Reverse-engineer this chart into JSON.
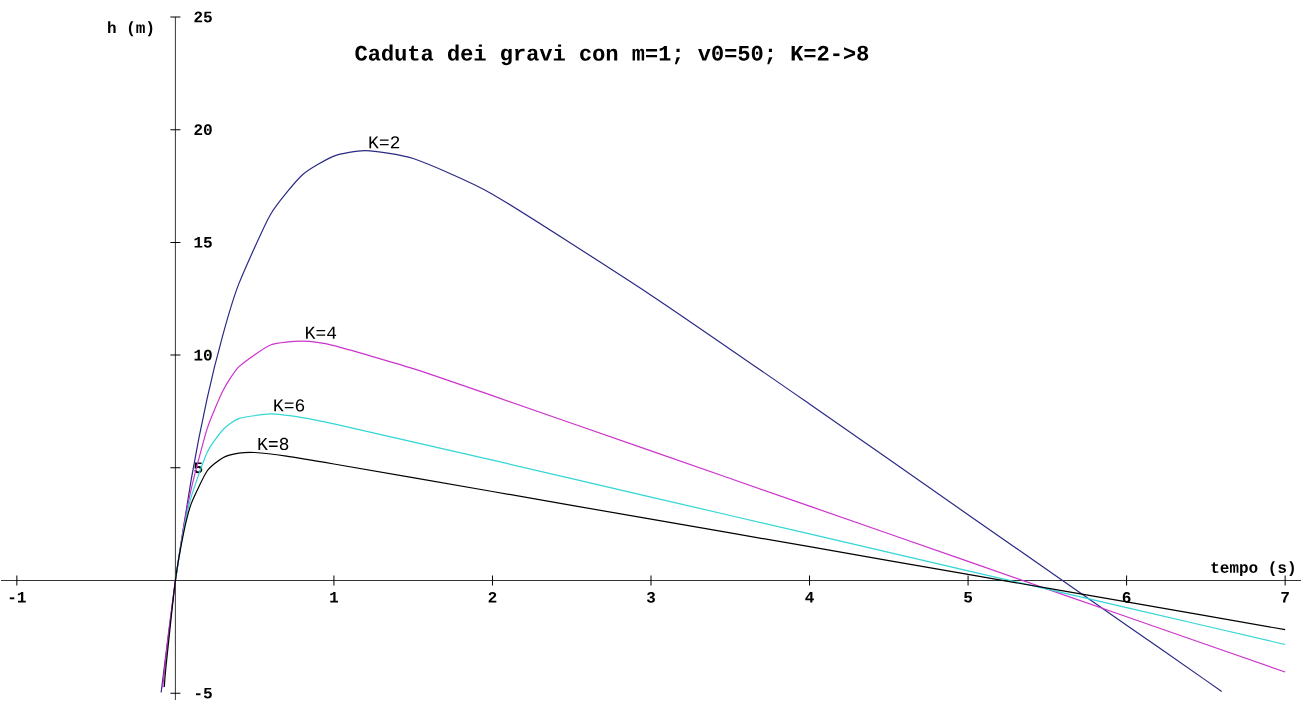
{
  "chart_data": {
    "type": "line",
    "title": "Caduta dei gravi con m=1; v0=50; K=2->8",
    "xlabel": "tempo (s)",
    "ylabel": "h (m)",
    "xlim": [
      -1.1,
      7.1
    ],
    "ylim": [
      -5.3,
      25
    ],
    "xticks": [
      -1,
      1,
      2,
      3,
      4,
      5,
      6,
      7
    ],
    "yticks": [
      -5,
      5,
      10,
      15,
      20,
      25
    ],
    "series": [
      {
        "name": "K=2",
        "color": "#2a2a85",
        "x": [
          -0.09,
          0,
          0.1,
          0.2,
          0.3,
          0.4,
          0.6,
          0.8,
          1.0,
          1.2,
          1.5,
          2,
          3,
          4,
          5,
          6,
          6.5,
          6.6
        ],
        "values": [
          -4.97,
          0,
          4.49,
          8.07,
          10.91,
          13.16,
          16.24,
          17.99,
          18.83,
          19.07,
          18.72,
          17.14,
          12.66,
          7.83,
          2.92,
          -1.98,
          -4.43,
          -4.92
        ]
      },
      {
        "name": "K=4",
        "color": "#cc33cc",
        "x": [
          -0.08,
          -0.05,
          0,
          0.05,
          0.1,
          0.2,
          0.3,
          0.4,
          0.6,
          0.8,
          1.0,
          1.5,
          2,
          3,
          4,
          5,
          6,
          7
        ],
        "values": [
          -4.74,
          -2.78,
          0,
          2.26,
          4.07,
          6.73,
          8.42,
          9.48,
          10.45,
          10.62,
          10.42,
          9.4,
          8.2,
          5.75,
          3.3,
          0.85,
          -1.61,
          -4.06
        ]
      },
      {
        "name": "K=6",
        "color": "#33d6d6",
        "x": [
          0,
          0.05,
          0.1,
          0.2,
          0.3,
          0.4,
          0.6,
          0.8,
          1,
          2,
          3,
          4,
          5,
          6,
          7
        ],
        "values": [
          0,
          2.15,
          3.72,
          5.68,
          6.69,
          7.18,
          7.39,
          7.23,
          6.95,
          5.34,
          3.7,
          2.07,
          0.43,
          -1.2,
          -2.84
        ]
      },
      {
        "name": "K=8",
        "color": "#000000",
        "x": [
          -0.07,
          -0.06,
          0,
          0.05,
          0.1,
          0.2,
          0.3,
          0.4,
          0.5,
          0.7,
          1,
          2,
          3,
          4,
          5,
          6,
          7
        ],
        "values": [
          -4.72,
          -3.87,
          0,
          2.05,
          3.41,
          4.86,
          5.45,
          5.65,
          5.68,
          5.52,
          5.17,
          3.95,
          2.72,
          1.5,
          0.27,
          -0.95,
          -2.18
        ]
      }
    ]
  }
}
